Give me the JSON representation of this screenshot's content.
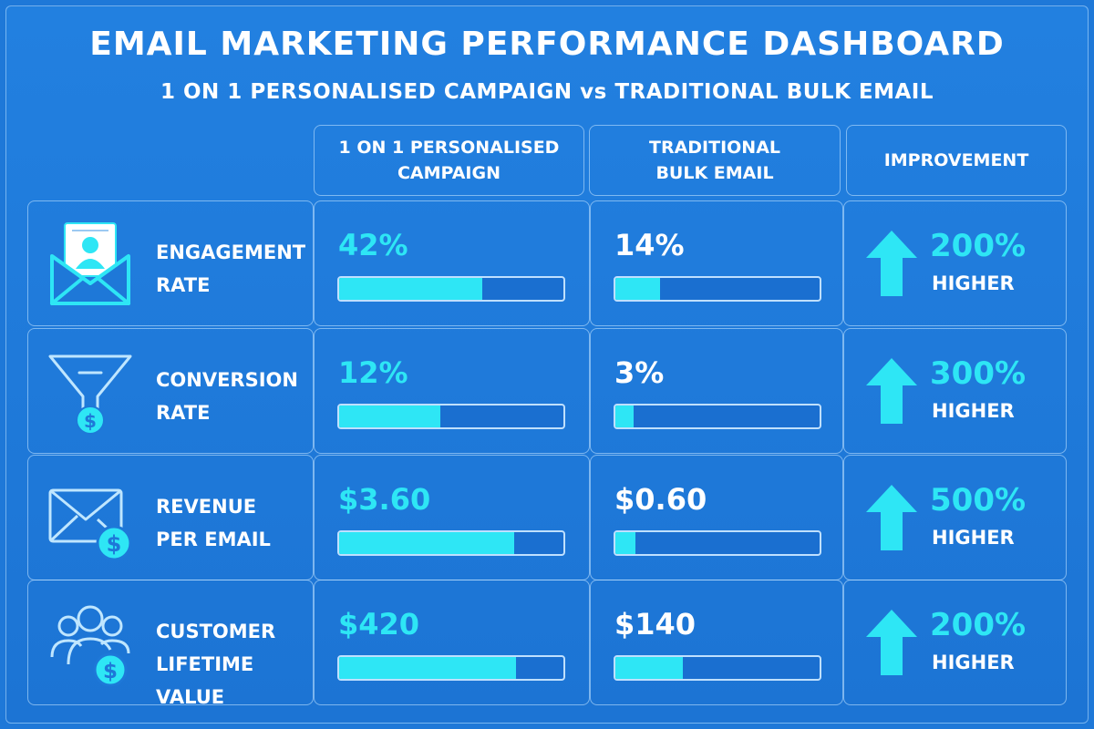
{
  "title": "EMAIL MARKETING PERFORMANCE DASHBOARD",
  "subtitle": "1 ON 1 PERSONALISED CAMPAIGN vs TRADITIONAL BULK EMAIL",
  "headers": {
    "personalised": [
      "1 ON 1 PERSONALISED",
      "CAMPAIGN"
    ],
    "traditional": [
      "TRADITIONAL",
      "BULK EMAIL"
    ],
    "improvement": "IMPROVEMENT"
  },
  "colors": {
    "background": "#1e78d8",
    "accent": "#2ee6f5",
    "text": "#ffffff"
  },
  "chart_data": {
    "type": "table",
    "columns": [
      "1 ON 1 PERSONALISED CAMPAIGN",
      "TRADITIONAL BULK EMAIL",
      "IMPROVEMENT"
    ],
    "rows": [
      {
        "icon": "envelope-profile-icon",
        "metric": [
          "ENGAGEMENT",
          "RATE"
        ],
        "personalised": {
          "text": "42%",
          "fill": 0.64
        },
        "traditional": {
          "text": "14%",
          "fill": 0.22
        },
        "improvement": {
          "value": "200%",
          "label": "HIGHER"
        }
      },
      {
        "icon": "funnel-dollar-icon",
        "metric": [
          "CONVERSION",
          "RATE"
        ],
        "personalised": {
          "text": "12%",
          "fill": 0.45
        },
        "traditional": {
          "text": "3%",
          "fill": 0.09
        },
        "improvement": {
          "value": "300%",
          "label": "HIGHER"
        }
      },
      {
        "icon": "envelope-dollar-icon",
        "metric": [
          "REVENUE",
          "PER EMAIL"
        ],
        "personalised": {
          "text": "$3.60",
          "fill": 0.78
        },
        "traditional": {
          "text": "$0.60",
          "fill": 0.1
        },
        "improvement": {
          "value": "500%",
          "label": "HIGHER"
        }
      },
      {
        "icon": "customers-dollar-icon",
        "metric": [
          "CUSTOMER",
          "LIFETIME VALUE"
        ],
        "personalised": {
          "text": "$420",
          "fill": 0.79
        },
        "traditional": {
          "text": "$140",
          "fill": 0.33
        },
        "improvement": {
          "value": "200%",
          "label": "HIGHER"
        }
      }
    ]
  }
}
